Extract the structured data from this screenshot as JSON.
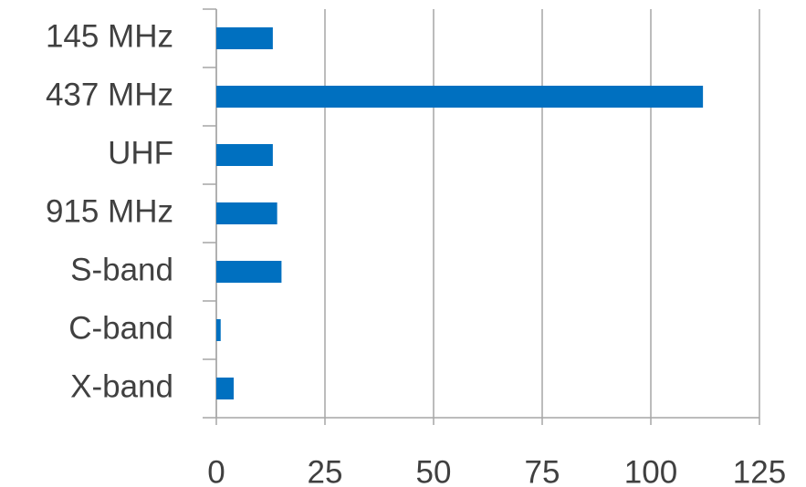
{
  "chart_data": {
    "type": "hbar",
    "categories": [
      "145 MHz",
      "437 MHz",
      "UHF",
      "915 MHz",
      "S-band",
      "C-band",
      "X-band"
    ],
    "values": [
      13,
      112,
      13,
      14,
      15,
      1,
      4
    ],
    "color": "#0070c0",
    "xlim": [
      0,
      125
    ],
    "xticks": [
      0,
      25,
      50,
      75,
      100,
      125
    ],
    "grid": true
  }
}
